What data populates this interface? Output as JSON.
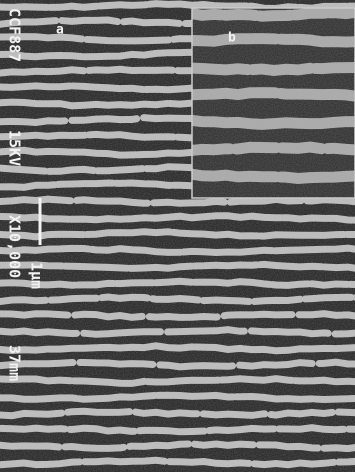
{
  "image": {
    "panel_a_label": "a",
    "panel_b_label": "b",
    "caption": {
      "sample": "CCF887",
      "voltage": "15KV",
      "magnification": "X10,000",
      "scale": "1μm",
      "distance": "37mm"
    }
  }
}
